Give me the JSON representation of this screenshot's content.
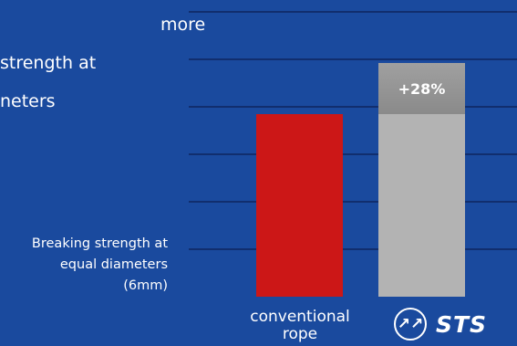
{
  "headline": {
    "lines": [
      "more",
      "strength at",
      "neters"
    ]
  },
  "y_caption": {
    "line1": "Breaking strength at",
    "line2": "equal diameters",
    "line3": "(6mm)"
  },
  "brand": {
    "logo_text": "STS",
    "logo_mark": "↗↗"
  },
  "colors": {
    "background": "#1a4a9e",
    "conventional_bar": "#cc1717",
    "sts_bar": "#b3b3b3",
    "sts_increase_segment": "#8f8f8f",
    "gridline": "#0c1f52"
  },
  "chart_data": {
    "type": "bar",
    "categories": [
      "conventional rope",
      "STS"
    ],
    "category_labels": [
      "conventional",
      "rope"
    ],
    "values": [
      100,
      128
    ],
    "increase_label": "+28%",
    "ylim": [
      0,
      156
    ],
    "grid": true,
    "xlabel": "",
    "ylabel": "Breaking strength at equal diameters (6mm)"
  }
}
